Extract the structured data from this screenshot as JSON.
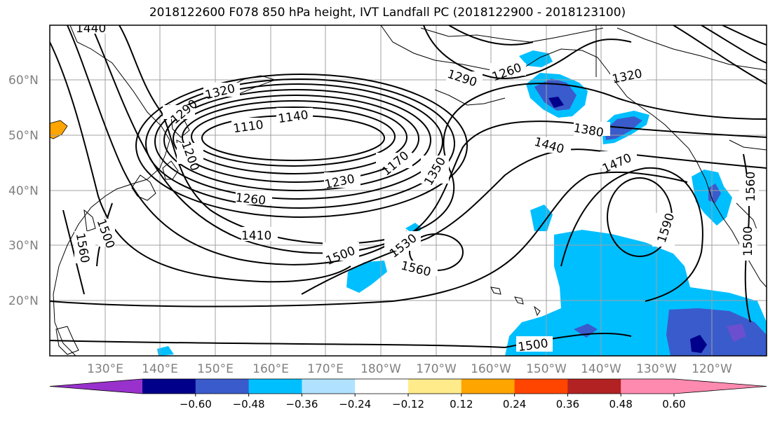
{
  "title": "2018122600 F078 850 hPa height, IVT Landfall PC (2018122900 - 2018123100)",
  "map": {
    "lat_labels": [
      "60°N",
      "50°N",
      "40°N",
      "30°N",
      "20°N"
    ],
    "lon_labels": [
      "130°E",
      "140°E",
      "150°E",
      "160°E",
      "170°E",
      "180°W",
      "170°W",
      "160°W",
      "150°W",
      "140°W",
      "130°W",
      "120°W"
    ],
    "contour_labels": [
      "1440",
      "1320",
      "1290",
      "1260",
      "1320",
      "1290",
      "1140",
      "1110",
      "1200",
      "1170",
      "1350",
      "1380",
      "1440",
      "1470",
      "1230",
      "1260",
      "1410",
      "1500",
      "1530",
      "1560",
      "1590",
      "1560",
      "1500",
      "1560",
      "1500",
      "1500"
    ]
  },
  "colorbar": {
    "ticks": [
      "−0.60",
      "−0.48",
      "−0.36",
      "−0.24",
      "−0.12",
      "0.12",
      "0.24",
      "0.36",
      "0.48",
      "0.60"
    ],
    "colors": [
      "#9932CC",
      "#00008B",
      "#3A5BCB",
      "#00BFFF",
      "#B0E2FF",
      "#FFFFFF",
      "#FFEB8A",
      "#FFA500",
      "#FF4500",
      "#B22222",
      "#FF8AB0",
      "#FF8AB0"
    ]
  }
}
